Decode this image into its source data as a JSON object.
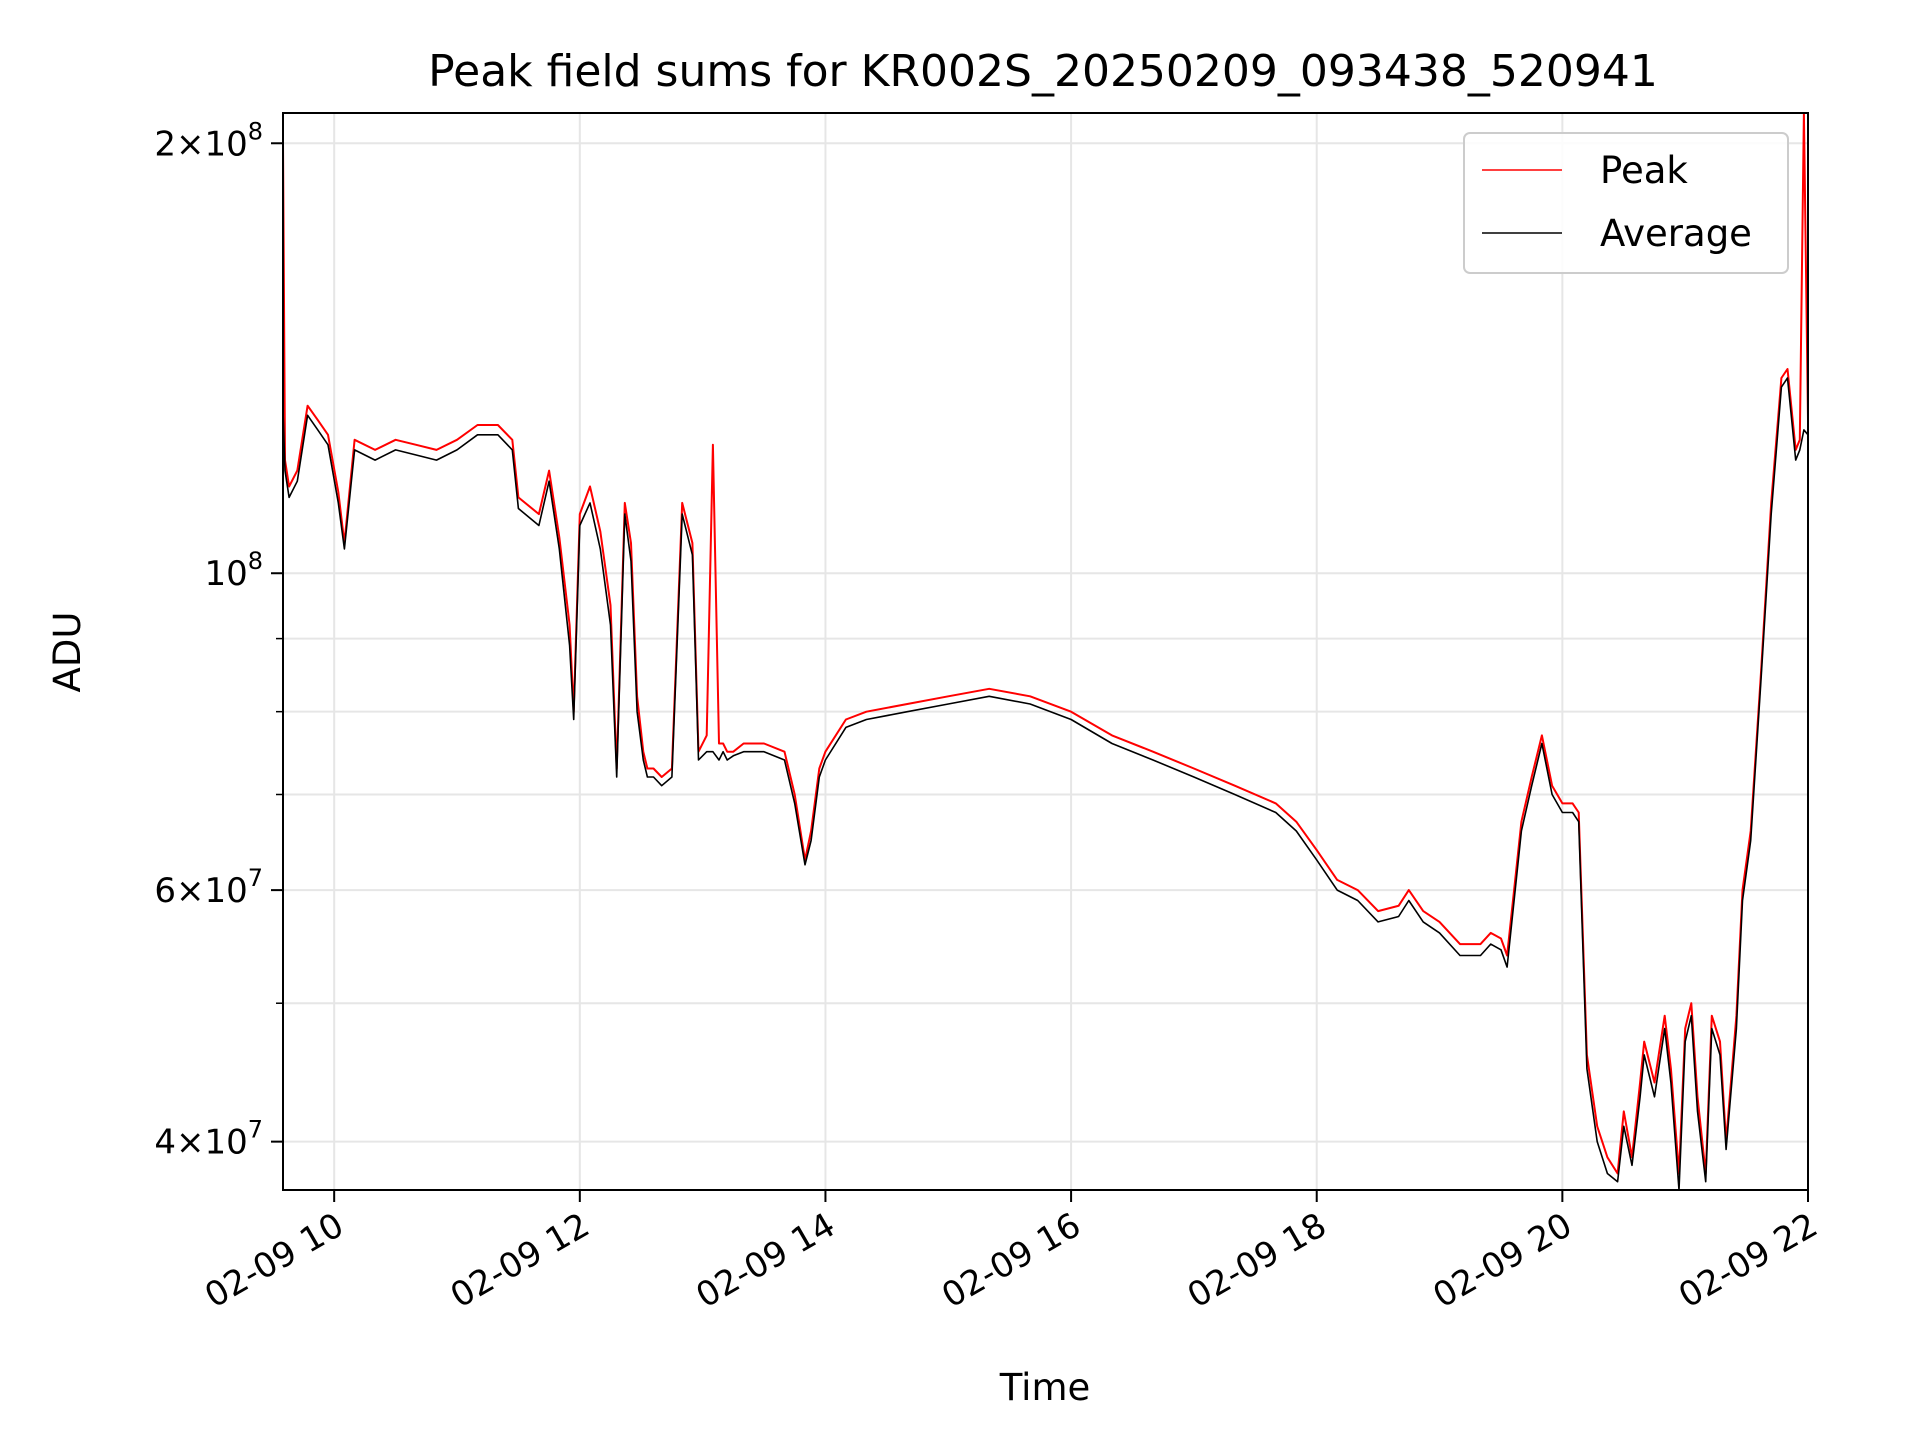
{
  "chart_data": {
    "type": "line",
    "title": "Peak field sums for KR002S_20250209_093438_520941",
    "xlabel": "Time",
    "ylabel": "ADU",
    "xscale": "time",
    "yscale": "log",
    "grid": true,
    "legend_position": "top-right",
    "xlim": [
      "2025-02-09 09:35",
      "2025-02-09 22:00"
    ],
    "ylim": [
      37000000,
      210000000
    ],
    "x_ticks": [
      {
        "value": "2025-02-09 10:00",
        "label": "02-09 10"
      },
      {
        "value": "2025-02-09 12:00",
        "label": "02-09 12"
      },
      {
        "value": "2025-02-09 14:00",
        "label": "02-09 14"
      },
      {
        "value": "2025-02-09 16:00",
        "label": "02-09 16"
      },
      {
        "value": "2025-02-09 18:00",
        "label": "02-09 18"
      },
      {
        "value": "2025-02-09 20:00",
        "label": "02-09 20"
      },
      {
        "value": "2025-02-09 22:00",
        "label": "02-09 22"
      }
    ],
    "y_ticks": [
      {
        "value": 200000000,
        "mantissa": "2",
        "exponent": "8"
      },
      {
        "value": 100000000,
        "mantissa": "",
        "exponent": "8"
      },
      {
        "value": 60000000,
        "mantissa": "6",
        "exponent": "7"
      },
      {
        "value": 40000000,
        "mantissa": "4",
        "exponent": "7"
      }
    ],
    "y_minor_ticks": [
      50000000,
      70000000,
      80000000,
      90000000
    ],
    "series": [
      {
        "name": "Peak",
        "color": "#ff0000",
        "x": [
          "2025-02-09 09:35",
          "2025-02-09 09:36",
          "2025-02-09 09:38",
          "2025-02-09 09:42",
          "2025-02-09 09:47",
          "2025-02-09 09:52",
          "2025-02-09 09:57",
          "2025-02-09 10:02",
          "2025-02-09 10:05",
          "2025-02-09 10:10",
          "2025-02-09 10:20",
          "2025-02-09 10:30",
          "2025-02-09 10:40",
          "2025-02-09 10:50",
          "2025-02-09 11:00",
          "2025-02-09 11:10",
          "2025-02-09 11:20",
          "2025-02-09 11:27",
          "2025-02-09 11:30",
          "2025-02-09 11:40",
          "2025-02-09 11:45",
          "2025-02-09 11:50",
          "2025-02-09 11:55",
          "2025-02-09 11:57",
          "2025-02-09 12:00",
          "2025-02-09 12:05",
          "2025-02-09 12:10",
          "2025-02-09 12:15",
          "2025-02-09 12:18",
          "2025-02-09 12:22",
          "2025-02-09 12:25",
          "2025-02-09 12:28",
          "2025-02-09 12:31",
          "2025-02-09 12:33",
          "2025-02-09 12:36",
          "2025-02-09 12:40",
          "2025-02-09 12:45",
          "2025-02-09 12:50",
          "2025-02-09 12:55",
          "2025-02-09 12:58",
          "2025-02-09 13:02",
          "2025-02-09 13:05",
          "2025-02-09 13:08",
          "2025-02-09 13:10",
          "2025-02-09 13:12",
          "2025-02-09 13:15",
          "2025-02-09 13:20",
          "2025-02-09 13:30",
          "2025-02-09 13:40",
          "2025-02-09 13:45",
          "2025-02-09 13:50",
          "2025-02-09 13:53",
          "2025-02-09 13:57",
          "2025-02-09 14:00",
          "2025-02-09 14:10",
          "2025-02-09 14:20",
          "2025-02-09 14:40",
          "2025-02-09 15:00",
          "2025-02-09 15:20",
          "2025-02-09 15:40",
          "2025-02-09 16:00",
          "2025-02-09 16:20",
          "2025-02-09 16:40",
          "2025-02-09 17:00",
          "2025-02-09 17:20",
          "2025-02-09 17:40",
          "2025-02-09 17:50",
          "2025-02-09 18:00",
          "2025-02-09 18:10",
          "2025-02-09 18:20",
          "2025-02-09 18:30",
          "2025-02-09 18:40",
          "2025-02-09 18:45",
          "2025-02-09 18:52",
          "2025-02-09 19:00",
          "2025-02-09 19:10",
          "2025-02-09 19:20",
          "2025-02-09 19:25",
          "2025-02-09 19:30",
          "2025-02-09 19:33",
          "2025-02-09 19:40",
          "2025-02-09 19:45",
          "2025-02-09 19:50",
          "2025-02-09 19:55",
          "2025-02-09 20:00",
          "2025-02-09 20:05",
          "2025-02-09 20:08",
          "2025-02-09 20:12",
          "2025-02-09 20:17",
          "2025-02-09 20:22",
          "2025-02-09 20:27",
          "2025-02-09 20:30",
          "2025-02-09 20:34",
          "2025-02-09 20:38",
          "2025-02-09 20:40",
          "2025-02-09 20:45",
          "2025-02-09 20:50",
          "2025-02-09 20:53",
          "2025-02-09 20:57",
          "2025-02-09 21:00",
          "2025-02-09 21:03",
          "2025-02-09 21:06",
          "2025-02-09 21:10",
          "2025-02-09 21:13",
          "2025-02-09 21:17",
          "2025-02-09 21:20",
          "2025-02-09 21:25",
          "2025-02-09 21:28",
          "2025-02-09 21:32",
          "2025-02-09 21:37",
          "2025-02-09 21:42",
          "2025-02-09 21:47",
          "2025-02-09 21:50",
          "2025-02-09 21:54",
          "2025-02-09 21:56",
          "2025-02-09 21:58",
          "2025-02-09 22:00"
        ],
        "y": [
          200000000,
          120000000,
          115000000,
          118000000,
          131000000,
          128000000,
          125000000,
          114000000,
          105000000,
          124000000,
          122000000,
          124000000,
          123000000,
          122000000,
          124000000,
          127000000,
          127000000,
          124000000,
          113000000,
          110000000,
          118000000,
          106000000,
          92000000,
          80000000,
          110000000,
          115000000,
          107000000,
          95000000,
          73000000,
          112000000,
          105000000,
          82000000,
          75000000,
          73000000,
          73000000,
          72000000,
          73000000,
          112000000,
          105000000,
          75000000,
          77000000,
          123000000,
          76000000,
          76000000,
          75000000,
          75000000,
          76000000,
          76000000,
          75000000,
          70000000,
          63000000,
          66000000,
          73000000,
          75000000,
          79000000,
          80000000,
          81000000,
          82000000,
          83000000,
          82000000,
          80000000,
          77000000,
          75000000,
          73000000,
          71000000,
          69000000,
          67000000,
          64000000,
          61000000,
          60000000,
          58000000,
          58500000,
          60000000,
          58000000,
          57000000,
          55000000,
          55000000,
          56000000,
          55500000,
          54000000,
          67000000,
          72000000,
          77000000,
          71000000,
          69000000,
          69000000,
          68000000,
          46000000,
          41000000,
          39000000,
          38000000,
          42000000,
          39000000,
          44000000,
          47000000,
          44000000,
          49000000,
          45000000,
          38000000,
          48000000,
          50000000,
          43000000,
          38000000,
          49000000,
          47000000,
          40000000,
          49000000,
          60000000,
          66000000,
          85000000,
          112000000,
          137000000,
          139000000,
          122000000,
          124000000,
          210000000,
          128000000
        ]
      },
      {
        "name": "Average",
        "color": "#000000",
        "x": [
          "2025-02-09 09:35",
          "2025-02-09 09:36",
          "2025-02-09 09:38",
          "2025-02-09 09:42",
          "2025-02-09 09:47",
          "2025-02-09 09:52",
          "2025-02-09 09:57",
          "2025-02-09 10:02",
          "2025-02-09 10:05",
          "2025-02-09 10:10",
          "2025-02-09 10:20",
          "2025-02-09 10:30",
          "2025-02-09 10:40",
          "2025-02-09 10:50",
          "2025-02-09 11:00",
          "2025-02-09 11:10",
          "2025-02-09 11:20",
          "2025-02-09 11:27",
          "2025-02-09 11:30",
          "2025-02-09 11:40",
          "2025-02-09 11:45",
          "2025-02-09 11:50",
          "2025-02-09 11:55",
          "2025-02-09 11:57",
          "2025-02-09 12:00",
          "2025-02-09 12:05",
          "2025-02-09 12:10",
          "2025-02-09 12:15",
          "2025-02-09 12:18",
          "2025-02-09 12:22",
          "2025-02-09 12:25",
          "2025-02-09 12:28",
          "2025-02-09 12:31",
          "2025-02-09 12:33",
          "2025-02-09 12:36",
          "2025-02-09 12:40",
          "2025-02-09 12:45",
          "2025-02-09 12:50",
          "2025-02-09 12:55",
          "2025-02-09 12:58",
          "2025-02-09 13:02",
          "2025-02-09 13:05",
          "2025-02-09 13:08",
          "2025-02-09 13:10",
          "2025-02-09 13:12",
          "2025-02-09 13:15",
          "2025-02-09 13:20",
          "2025-02-09 13:30",
          "2025-02-09 13:40",
          "2025-02-09 13:45",
          "2025-02-09 13:50",
          "2025-02-09 13:53",
          "2025-02-09 13:57",
          "2025-02-09 14:00",
          "2025-02-09 14:10",
          "2025-02-09 14:20",
          "2025-02-09 14:40",
          "2025-02-09 15:00",
          "2025-02-09 15:20",
          "2025-02-09 15:40",
          "2025-02-09 16:00",
          "2025-02-09 16:20",
          "2025-02-09 16:40",
          "2025-02-09 17:00",
          "2025-02-09 17:20",
          "2025-02-09 17:40",
          "2025-02-09 17:50",
          "2025-02-09 18:00",
          "2025-02-09 18:10",
          "2025-02-09 18:20",
          "2025-02-09 18:30",
          "2025-02-09 18:40",
          "2025-02-09 18:45",
          "2025-02-09 18:52",
          "2025-02-09 19:00",
          "2025-02-09 19:10",
          "2025-02-09 19:20",
          "2025-02-09 19:25",
          "2025-02-09 19:30",
          "2025-02-09 19:33",
          "2025-02-09 19:40",
          "2025-02-09 19:45",
          "2025-02-09 19:50",
          "2025-02-09 19:55",
          "2025-02-09 20:00",
          "2025-02-09 20:05",
          "2025-02-09 20:08",
          "2025-02-09 20:12",
          "2025-02-09 20:17",
          "2025-02-09 20:22",
          "2025-02-09 20:27",
          "2025-02-09 20:30",
          "2025-02-09 20:34",
          "2025-02-09 20:38",
          "2025-02-09 20:40",
          "2025-02-09 20:45",
          "2025-02-09 20:50",
          "2025-02-09 20:53",
          "2025-02-09 20:57",
          "2025-02-09 21:00",
          "2025-02-09 21:03",
          "2025-02-09 21:06",
          "2025-02-09 21:10",
          "2025-02-09 21:13",
          "2025-02-09 21:17",
          "2025-02-09 21:20",
          "2025-02-09 21:25",
          "2025-02-09 21:28",
          "2025-02-09 21:32",
          "2025-02-09 21:37",
          "2025-02-09 21:42",
          "2025-02-09 21:47",
          "2025-02-09 21:50",
          "2025-02-09 21:54",
          "2025-02-09 21:56",
          "2025-02-09 21:58",
          "2025-02-09 22:00"
        ],
        "y": [
          130000000,
          118000000,
          113000000,
          116000000,
          129000000,
          126000000,
          123000000,
          112000000,
          104000000,
          122000000,
          120000000,
          122000000,
          121000000,
          120000000,
          122000000,
          125000000,
          125000000,
          122000000,
          111000000,
          108000000,
          116000000,
          104000000,
          89000000,
          79000000,
          108000000,
          112000000,
          104000000,
          92000000,
          72000000,
          110000000,
          102000000,
          80000000,
          74000000,
          72000000,
          72000000,
          71000000,
          72000000,
          110000000,
          103000000,
          74000000,
          75000000,
          75000000,
          74000000,
          75000000,
          74000000,
          74500000,
          75000000,
          75000000,
          74000000,
          69000000,
          62500000,
          65000000,
          72000000,
          74000000,
          78000000,
          79000000,
          80000000,
          81000000,
          82000000,
          81000000,
          79000000,
          76000000,
          74000000,
          72000000,
          70000000,
          68000000,
          66000000,
          63000000,
          60000000,
          59000000,
          57000000,
          57500000,
          59000000,
          57000000,
          56000000,
          54000000,
          54000000,
          55000000,
          54500000,
          53000000,
          66000000,
          71000000,
          76000000,
          70000000,
          68000000,
          68000000,
          67000000,
          45000000,
          40000000,
          38000000,
          37500000,
          41000000,
          38500000,
          43000000,
          46000000,
          43000000,
          48000000,
          44000000,
          37000000,
          47000000,
          49000000,
          42000000,
          37500000,
          48000000,
          46000000,
          39500000,
          48000000,
          59000000,
          65000000,
          84000000,
          110000000,
          135000000,
          137000000,
          120000000,
          122000000,
          126000000,
          125000000
        ]
      }
    ]
  }
}
